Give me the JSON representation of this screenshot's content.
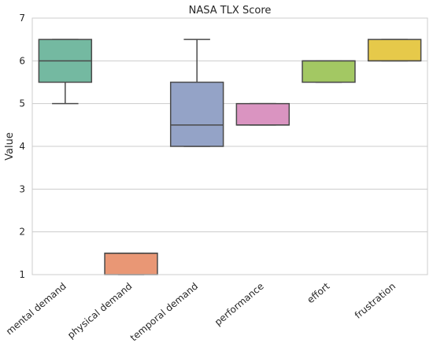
{
  "chart_data": {
    "type": "boxplot",
    "title": "NASA TLX Score",
    "ylabel": "Value",
    "xlabel": "",
    "ylim": [
      1,
      7
    ],
    "yticks": [
      1,
      2,
      3,
      4,
      5,
      6,
      7
    ],
    "grid": "horizontal",
    "categories": [
      "mental demand",
      "physical demand",
      "temporal demand",
      "performance",
      "effort",
      "frustration"
    ],
    "boxes": [
      {
        "category": "mental demand",
        "whisker_low": 5.0,
        "q1": 5.5,
        "median": 6.0,
        "q3": 6.5,
        "whisker_high": 6.5,
        "color": "#74b9a1"
      },
      {
        "category": "physical demand",
        "whisker_low": 1.0,
        "q1": 1.0,
        "median": 1.5,
        "q3": 1.5,
        "whisker_high": 1.5,
        "color": "#e99775"
      },
      {
        "category": "temporal demand",
        "whisker_low": 4.0,
        "q1": 4.0,
        "median": 4.5,
        "q3": 5.5,
        "whisker_high": 6.5,
        "color": "#94a3c7"
      },
      {
        "category": "performance",
        "whisker_low": 4.5,
        "q1": 4.5,
        "median": 4.5,
        "q3": 5.0,
        "whisker_high": 5.0,
        "color": "#da94c1"
      },
      {
        "category": "effort",
        "whisker_low": 5.5,
        "q1": 5.5,
        "median": 6.0,
        "q3": 6.0,
        "whisker_high": 6.0,
        "color": "#a3c863"
      },
      {
        "category": "frustration",
        "whisker_low": 6.0,
        "q1": 6.0,
        "median": 6.0,
        "q3": 6.5,
        "whisker_high": 6.5,
        "color": "#e6c94a"
      }
    ],
    "colors": {
      "grid": "#cccccc",
      "spine": "#cccccc",
      "box_edge": "#4a4a4a",
      "text": "#262626"
    }
  }
}
